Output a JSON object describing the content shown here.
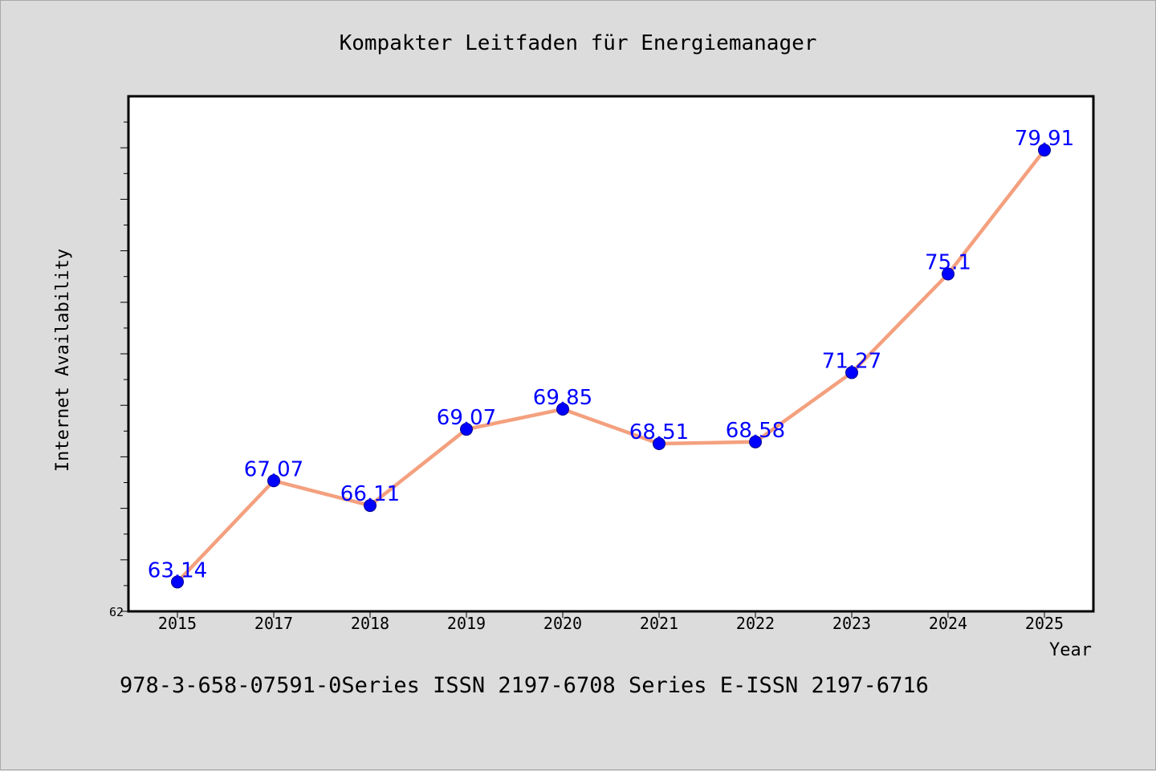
{
  "chart_data": {
    "type": "line",
    "title": "Kompakter Leitfaden für Energiemanager",
    "xlabel": "Year",
    "ylabel": "Internet Availability",
    "categories": [
      "2015",
      "2017",
      "2018",
      "2019",
      "2020",
      "2021",
      "2022",
      "2023",
      "2024",
      "2025"
    ],
    "series": [
      {
        "values": [
          63.14,
          67.07,
          66.11,
          69.07,
          69.85,
          68.51,
          68.58,
          71.27,
          75.1,
          79.91
        ],
        "data_labels": [
          "63.14",
          "67.07",
          "66.11",
          "69.07",
          "69.85",
          "68.51",
          "68.58",
          "71.27",
          "75.1",
          "79.91"
        ]
      }
    ],
    "ylim": [
      62,
      82
    ],
    "yticks_labeled": [
      "62"
    ],
    "grid": false,
    "legend": "none",
    "colors": {
      "line": "#f4a07e",
      "marker": "#0000ff",
      "marker_edge": "#00008b",
      "label": "#0000ff",
      "plot_bg": "#ffffff",
      "figure_bg": "#dcdcdc"
    }
  },
  "footer": {
    "text": "978-3-658-07591-0Series ISSN 2197-6708 Series E-ISSN 2197-6716"
  }
}
